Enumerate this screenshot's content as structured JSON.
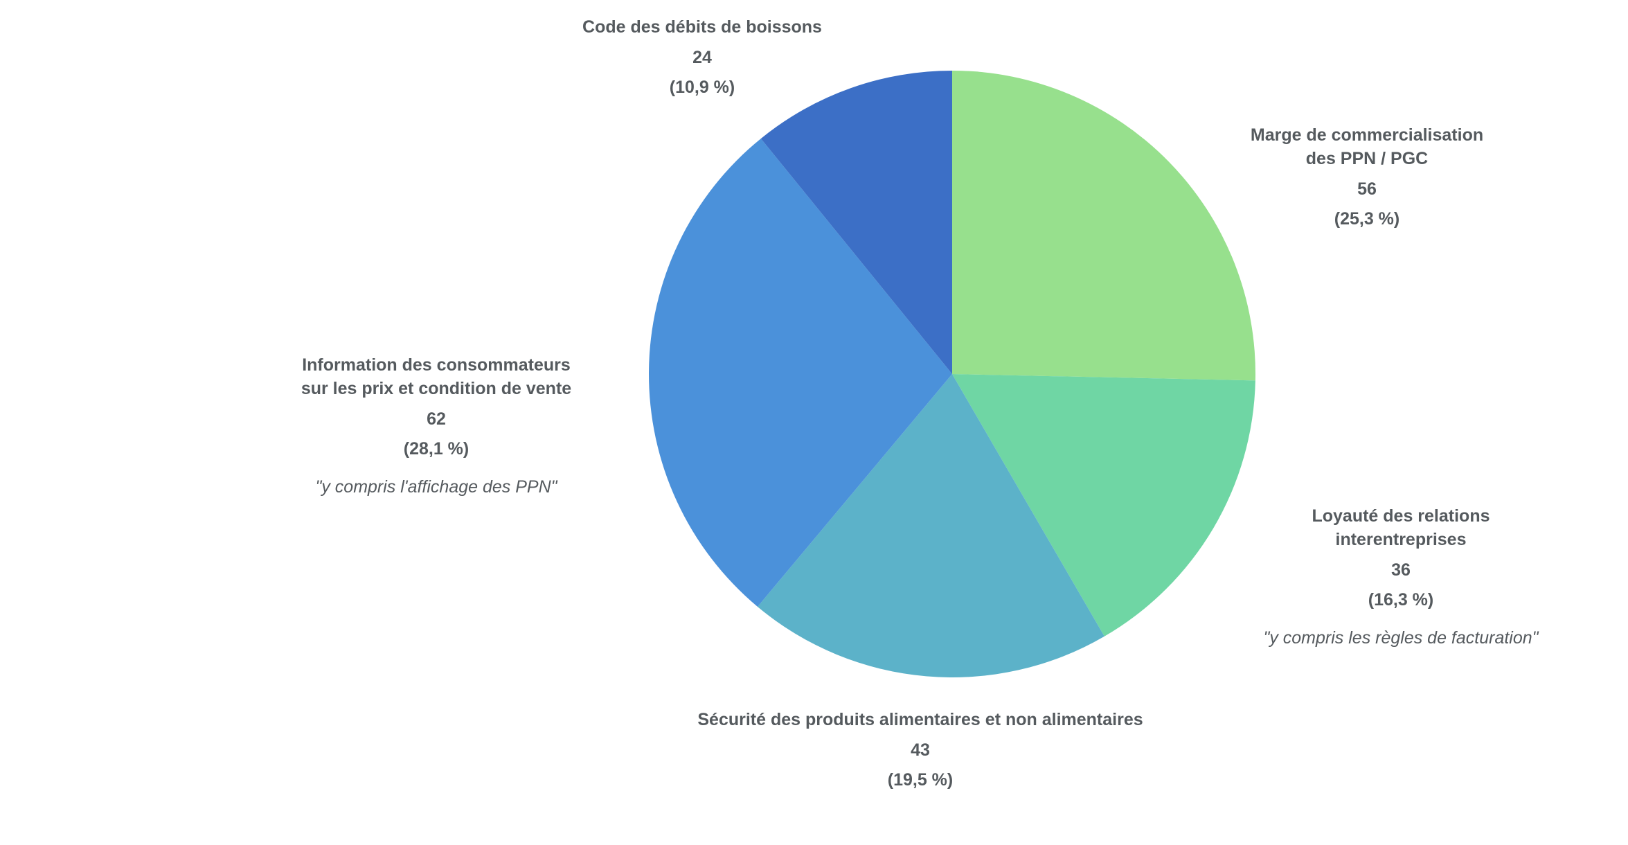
{
  "chart_data": {
    "type": "pie",
    "categories": [
      "Marge de commercialisation des PPN / PGC",
      "Loyauté des relations interentreprises",
      "Sécurité des produits alimentaires et non alimentaires",
      "Information des consommateurs\nsur les prix et condition de vente",
      "Code des débits de boissons"
    ],
    "values": [
      56,
      36,
      43,
      62,
      24
    ],
    "percent_labels": [
      "(25,3 %)",
      "(16,3 %)",
      "(19,5 %)",
      "(28,1 %)",
      "(10,9 %)"
    ],
    "notes": [
      null,
      "\"y compris les règles de facturation\"",
      null,
      "\"y compris l'affichage des PPN\"",
      null
    ],
    "colors": [
      "#97e08d",
      "#6fd6a4",
      "#5cb2c9",
      "#4b91da",
      "#3c6fc6"
    ]
  }
}
